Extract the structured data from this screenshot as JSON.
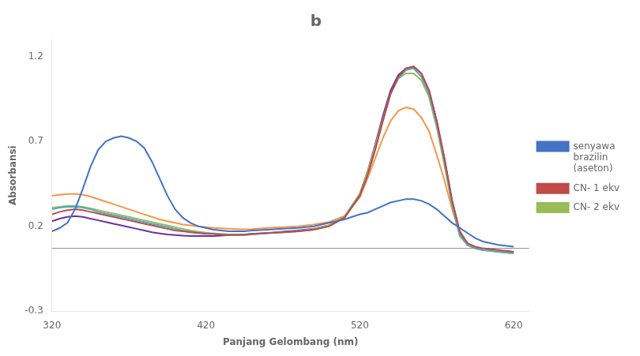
{
  "chart_data": {
    "type": "line",
    "title": "b",
    "xlabel": "Panjang Gelombang (nm)",
    "ylabel": "Absorbansi",
    "xlim": [
      320,
      630
    ],
    "ylim": [
      -0.3,
      1.3
    ],
    "xticks": [
      320,
      420,
      520,
      620
    ],
    "yticks": [
      -0.3,
      0.2,
      0.7,
      1.2
    ],
    "grid": false,
    "legend": "right",
    "baseline": 0.07,
    "x": [
      320,
      325,
      330,
      335,
      340,
      345,
      350,
      355,
      360,
      365,
      370,
      375,
      380,
      385,
      390,
      395,
      400,
      405,
      410,
      415,
      420,
      425,
      430,
      435,
      440,
      445,
      450,
      460,
      470,
      480,
      490,
      500,
      510,
      520,
      525,
      530,
      535,
      540,
      545,
      550,
      555,
      560,
      565,
      570,
      575,
      580,
      585,
      590,
      595,
      600,
      610,
      620
    ],
    "series": [
      {
        "name": "senyawa\nbrazilin\n(aseton)",
        "color": "#4472C4",
        "values": [
          0.17,
          0.19,
          0.22,
          0.3,
          0.42,
          0.55,
          0.65,
          0.7,
          0.72,
          0.73,
          0.72,
          0.7,
          0.66,
          0.58,
          0.48,
          0.38,
          0.3,
          0.25,
          0.22,
          0.2,
          0.19,
          0.18,
          0.175,
          0.17,
          0.17,
          0.17,
          0.175,
          0.18,
          0.185,
          0.19,
          0.2,
          0.22,
          0.24,
          0.27,
          0.28,
          0.3,
          0.32,
          0.34,
          0.35,
          0.36,
          0.36,
          0.35,
          0.33,
          0.3,
          0.26,
          0.22,
          0.19,
          0.16,
          0.13,
          0.11,
          0.09,
          0.08
        ]
      },
      {
        "name": "CN- 1 ekv",
        "color": "#BE4B48",
        "values": [
          0.27,
          0.285,
          0.295,
          0.3,
          0.295,
          0.285,
          0.275,
          0.265,
          0.255,
          0.245,
          0.235,
          0.225,
          0.215,
          0.205,
          0.195,
          0.185,
          0.175,
          0.17,
          0.165,
          0.16,
          0.155,
          0.155,
          0.15,
          0.15,
          0.15,
          0.15,
          0.155,
          0.16,
          0.165,
          0.17,
          0.18,
          0.2,
          0.25,
          0.38,
          0.5,
          0.65,
          0.82,
          0.98,
          1.08,
          1.13,
          1.14,
          1.1,
          1.0,
          0.82,
          0.6,
          0.35,
          0.17,
          0.1,
          0.08,
          0.07,
          0.06,
          0.05
        ]
      },
      {
        "color": "#4BACC6",
        "values": [
          0.3,
          0.31,
          0.315,
          0.315,
          0.31,
          0.3,
          0.285,
          0.275,
          0.265,
          0.255,
          0.245,
          0.235,
          0.225,
          0.215,
          0.205,
          0.195,
          0.185,
          0.175,
          0.168,
          0.162,
          0.158,
          0.155,
          0.152,
          0.15,
          0.15,
          0.15,
          0.152,
          0.16,
          0.165,
          0.17,
          0.18,
          0.2,
          0.25,
          0.38,
          0.5,
          0.65,
          0.82,
          0.98,
          1.07,
          1.12,
          1.13,
          1.08,
          0.98,
          0.8,
          0.58,
          0.33,
          0.15,
          0.09,
          0.07,
          0.06,
          0.05,
          0.04
        ]
      },
      {
        "name": "CN- 2 ekv",
        "color": "#9BBB59",
        "values": [
          0.31,
          0.315,
          0.32,
          0.32,
          0.315,
          0.305,
          0.295,
          0.285,
          0.275,
          0.265,
          0.255,
          0.245,
          0.235,
          0.225,
          0.215,
          0.205,
          0.195,
          0.185,
          0.175,
          0.168,
          0.162,
          0.158,
          0.155,
          0.152,
          0.15,
          0.15,
          0.152,
          0.16,
          0.165,
          0.17,
          0.185,
          0.205,
          0.255,
          0.39,
          0.52,
          0.67,
          0.83,
          0.98,
          1.07,
          1.1,
          1.1,
          1.06,
          0.96,
          0.78,
          0.56,
          0.32,
          0.14,
          0.09,
          0.07,
          0.06,
          0.05,
          0.04
        ]
      },
      {
        "color": "#F79646",
        "values": [
          0.38,
          0.385,
          0.39,
          0.39,
          0.385,
          0.375,
          0.36,
          0.345,
          0.33,
          0.315,
          0.3,
          0.285,
          0.27,
          0.255,
          0.24,
          0.23,
          0.22,
          0.21,
          0.205,
          0.2,
          0.195,
          0.19,
          0.188,
          0.185,
          0.183,
          0.182,
          0.183,
          0.19,
          0.195,
          0.2,
          0.21,
          0.225,
          0.26,
          0.37,
          0.48,
          0.6,
          0.72,
          0.82,
          0.88,
          0.9,
          0.89,
          0.84,
          0.76,
          0.62,
          0.47,
          0.3,
          0.15,
          0.09,
          0.07,
          0.06,
          0.055,
          0.05
        ]
      },
      {
        "color": "#7030A0",
        "values": [
          0.23,
          0.245,
          0.255,
          0.26,
          0.255,
          0.245,
          0.235,
          0.225,
          0.215,
          0.205,
          0.195,
          0.185,
          0.175,
          0.165,
          0.158,
          0.152,
          0.148,
          0.145,
          0.143,
          0.142,
          0.142,
          0.143,
          0.145,
          0.148,
          0.15,
          0.152,
          0.155,
          0.16,
          0.168,
          0.175,
          0.185,
          0.205,
          0.255,
          0.39,
          0.52,
          0.68,
          0.85,
          1.0,
          1.09,
          1.13,
          1.14,
          1.1,
          1.0,
          0.82,
          0.6,
          0.35,
          0.16,
          0.09,
          0.07,
          0.06,
          0.055,
          0.05
        ]
      }
    ]
  }
}
